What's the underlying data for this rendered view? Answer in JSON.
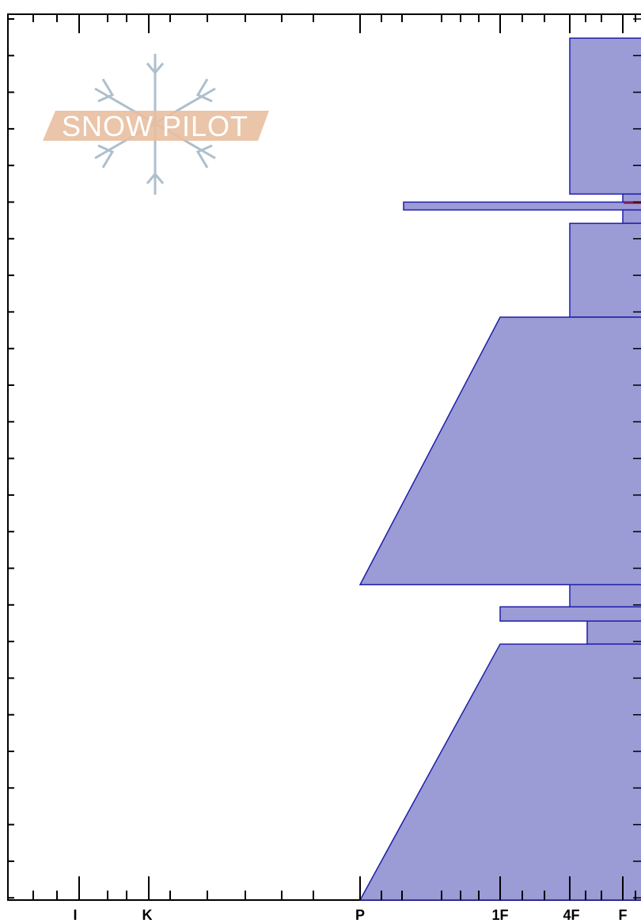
{
  "chart_data": {
    "type": "area",
    "title": "",
    "xlabel": "",
    "ylabel": "",
    "x_axis": {
      "tick_labels": [
        "I",
        "K",
        "P",
        "1F",
        "4F",
        "F"
      ],
      "scale": "ordinal hardness (F leftmost edge off-frame)"
    },
    "hardness_profile_note": "step profile; top to bottom",
    "layers": [
      {
        "top": 0.027,
        "bottom": 0.203,
        "hardness_left": "4F"
      },
      {
        "top": 0.203,
        "bottom": 0.212,
        "hardness_left": "F"
      },
      {
        "top": 0.212,
        "bottom": 0.221,
        "hardness_left": "P+"
      },
      {
        "top": 0.221,
        "bottom": 0.236,
        "hardness_left": "F"
      },
      {
        "top": 0.236,
        "bottom": 0.342,
        "hardness_left": "4F"
      },
      {
        "top": 0.342,
        "bottom": 0.644,
        "hardness_left": "1F to P",
        "sloped": true
      },
      {
        "top": 0.644,
        "bottom": 0.669,
        "hardness_left": "4F"
      },
      {
        "top": 0.669,
        "bottom": 0.685,
        "hardness_left": "1F"
      },
      {
        "top": 0.685,
        "bottom": 0.711,
        "hardness_left": "4F+"
      },
      {
        "top": 0.711,
        "bottom": 1.0,
        "hardness_left": "1F to P",
        "sloped": true
      }
    ],
    "colors": {
      "fill": "#9b9bd6",
      "stroke": "#1f1fa8",
      "accent": "#cc2222"
    }
  },
  "logo": {
    "text": "SNOW PILOT",
    "colors": {
      "band": "#e8bfa0",
      "flake": "#aebfcc"
    }
  }
}
